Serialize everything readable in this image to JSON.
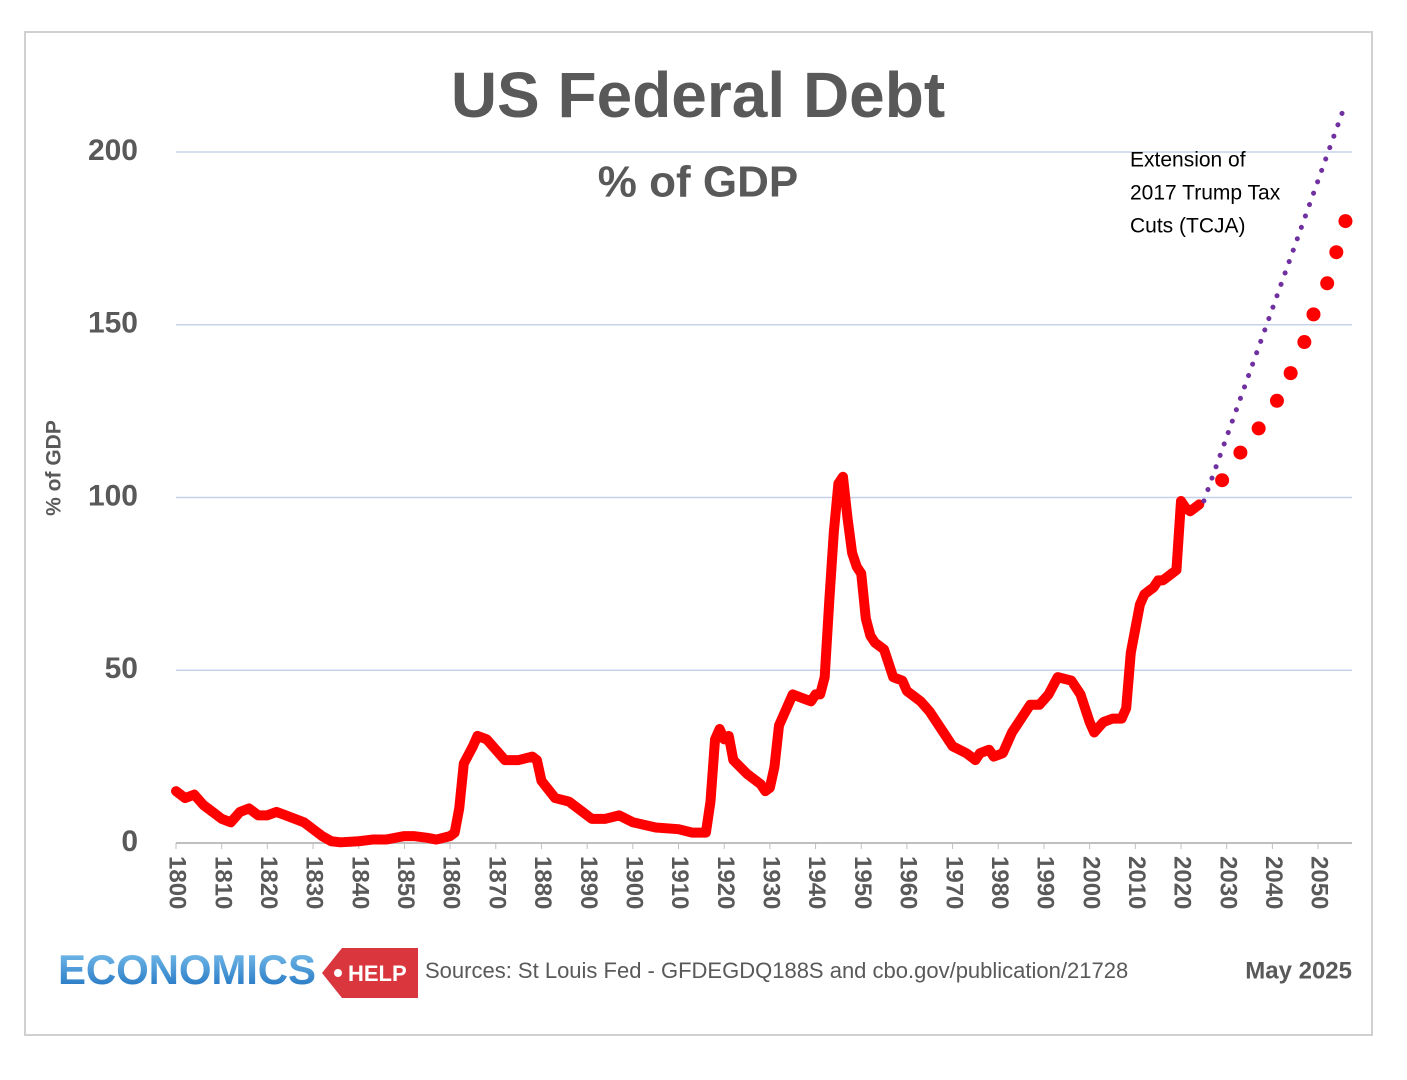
{
  "chart_data": {
    "type": "line",
    "title": "US Federal Debt",
    "subtitle": "% of GDP",
    "y_label": "% of GDP",
    "annotation": [
      "Extension of",
      "2017 Trump Tax",
      "Cuts (TCJA)"
    ],
    "xlim": [
      1800,
      2058
    ],
    "xticks": [
      1800,
      1810,
      1820,
      1830,
      1840,
      1850,
      1860,
      1870,
      1880,
      1890,
      1900,
      1910,
      1920,
      1930,
      1940,
      1950,
      1960,
      1970,
      1980,
      1990,
      2000,
      2010,
      2020,
      2030,
      2040,
      2050
    ],
    "ylim": [
      0,
      220
    ],
    "yticks": [
      0,
      50,
      100,
      150,
      200
    ],
    "grid": true,
    "series": [
      {
        "style": "line",
        "color": "#ff0000",
        "x": [
          1800,
          1802,
          1804,
          1806,
          1808,
          1810,
          1812,
          1814,
          1816,
          1818,
          1820,
          1822,
          1824,
          1826,
          1828,
          1830,
          1832,
          1834,
          1836,
          1840,
          1843,
          1846,
          1850,
          1852,
          1855,
          1857,
          1860,
          1861,
          1862,
          1863,
          1865,
          1866,
          1868,
          1870,
          1872,
          1875,
          1878,
          1879,
          1880,
          1883,
          1886,
          1889,
          1891,
          1894,
          1897,
          1900,
          1905,
          1910,
          1913,
          1916,
          1917,
          1918,
          1919,
          1920,
          1921,
          1922,
          1925,
          1928,
          1929,
          1930,
          1931,
          1932,
          1934,
          1935,
          1937,
          1939,
          1940,
          1941,
          1942,
          1943,
          1944,
          1945,
          1946,
          1947,
          1948,
          1949,
          1950,
          1951,
          1952,
          1953,
          1955,
          1957,
          1959,
          1960,
          1963,
          1965,
          1968,
          1970,
          1973,
          1975,
          1976,
          1978,
          1979,
          1981,
          1983,
          1985,
          1987,
          1989,
          1991,
          1993,
          1996,
          1998,
          2000,
          2001,
          2003,
          2005,
          2007,
          2008,
          2009,
          2010,
          2011,
          2012,
          2013,
          2014,
          2015,
          2016,
          2017,
          2018,
          2019,
          2020,
          2021,
          2022,
          2023,
          2024
        ],
        "values": [
          15,
          13,
          14,
          11,
          9,
          7,
          6,
          9,
          10,
          8,
          8,
          9,
          8,
          7,
          6,
          4,
          2,
          0.5,
          0.2,
          0.5,
          1,
          1,
          2,
          2,
          1.5,
          1,
          2,
          3,
          10,
          23,
          28,
          31,
          30,
          27,
          24,
          24,
          25,
          24,
          18,
          13,
          12,
          9,
          7,
          7,
          8,
          6,
          4.5,
          4,
          3,
          3,
          12,
          30,
          33,
          30,
          31,
          24,
          20,
          17,
          15,
          16,
          22,
          34,
          40,
          43,
          42,
          41,
          43,
          43,
          48,
          70,
          90,
          104,
          106,
          94,
          84,
          80,
          78,
          65,
          60,
          58,
          56,
          48,
          47,
          44,
          41,
          38,
          32,
          28,
          26,
          24,
          26,
          27,
          25,
          26,
          32,
          36,
          40,
          40,
          43,
          48,
          47,
          43,
          35,
          32,
          35,
          36,
          36,
          39,
          55,
          62,
          69,
          72,
          73,
          74,
          76,
          76,
          77,
          78,
          79,
          99,
          97,
          96,
          97,
          98
        ]
      },
      {
        "style": "dots",
        "color": "#ff0000",
        "x": [
          2029,
          2033,
          2037,
          2041,
          2044,
          2047,
          2049,
          2052,
          2054,
          2056
        ],
        "values": [
          105,
          113,
          120,
          128,
          136,
          145,
          153,
          162,
          171,
          180
        ]
      },
      {
        "style": "dotted",
        "color": "#7030a0",
        "x": [
          2025,
          2056
        ],
        "values": [
          99,
          214
        ]
      }
    ]
  },
  "footer": {
    "logo": [
      "ECONOMICS",
      "HELP"
    ],
    "source": "Sources: St Louis Fed - GFDEGDQ188S and cbo.gov/publication/21728",
    "date": "May 2025"
  }
}
